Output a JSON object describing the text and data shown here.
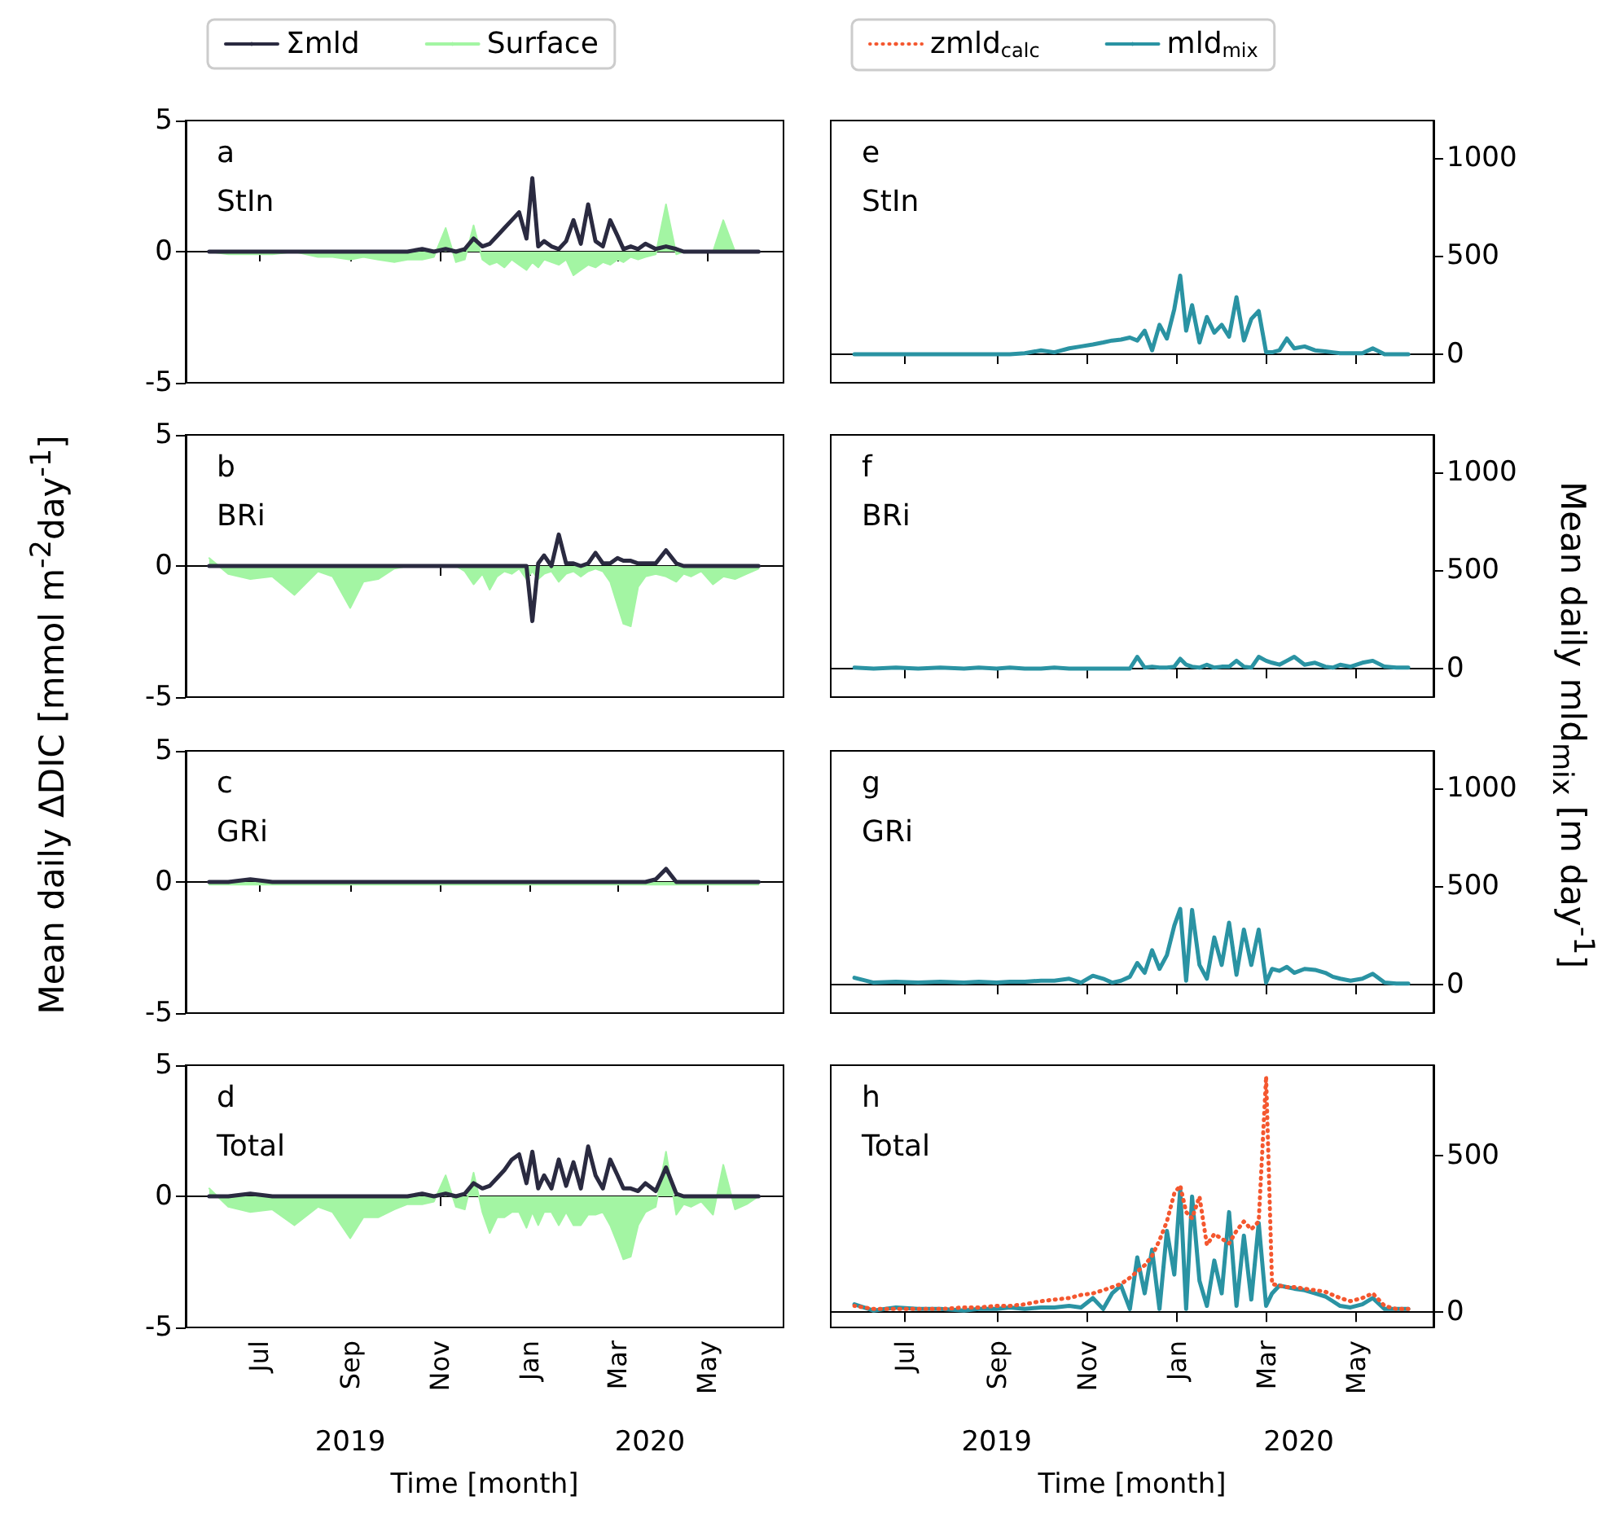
{
  "chart_data": [
    {
      "type": "line",
      "title": "a",
      "subtitle": "StIn",
      "legend": "top",
      "marker": "none",
      "tick_labels": "y",
      "xlim": [
        "2019-05-12",
        "2020-06-22"
      ],
      "xticks": [
        {
          "value": "2019-07-01",
          "label": null
        },
        {
          "value": "2019-09-01",
          "label": null
        },
        {
          "value": "2019-11-01",
          "label": null
        },
        {
          "value": "2020-01-01",
          "label": null
        },
        {
          "value": "2020-03-01",
          "label": null
        },
        {
          "value": "2020-05-01",
          "label": null
        }
      ],
      "ylim": [
        -5,
        5
      ],
      "yticks": [
        -5,
        0,
        5
      ],
      "x": [
        "2019-05-28",
        "2019-06-10",
        "2019-06-25",
        "2019-07-10",
        "2019-07-25",
        "2019-08-10",
        "2019-08-20",
        "2019-09-01",
        "2019-09-10",
        "2019-09-20",
        "2019-10-01",
        "2019-10-10",
        "2019-10-20",
        "2019-10-28",
        "2019-11-05",
        "2019-11-12",
        "2019-11-18",
        "2019-11-24",
        "2019-11-30",
        "2019-12-05",
        "2019-12-10",
        "2019-12-15",
        "2019-12-20",
        "2019-12-25",
        "2019-12-30",
        "2020-01-03",
        "2020-01-07",
        "2020-01-11",
        "2020-01-16",
        "2020-01-21",
        "2020-01-26",
        "2020-01-31",
        "2020-02-05",
        "2020-02-10",
        "2020-02-15",
        "2020-02-20",
        "2020-02-25",
        "2020-03-01",
        "2020-03-05",
        "2020-03-10",
        "2020-03-15",
        "2020-03-20",
        "2020-03-27",
        "2020-04-03",
        "2020-04-10",
        "2020-04-15",
        "2020-04-20",
        "2020-04-27",
        "2020-05-05",
        "2020-05-12",
        "2020-05-20",
        "2020-05-28",
        "2020-06-05"
      ],
      "series": [
        {
          "name": "Σmld",
          "color": "#2a2a40",
          "values": [
            0,
            0,
            0,
            0,
            0,
            0,
            0,
            0,
            0,
            0,
            0,
            0,
            0.1,
            0,
            0.1,
            0,
            0.1,
            0.5,
            0.2,
            0.3,
            0.6,
            0.9,
            1.2,
            1.5,
            0.5,
            2.8,
            0.2,
            0.4,
            0.2,
            0.1,
            0.4,
            1.2,
            0.3,
            1.8,
            0.4,
            0.2,
            1.2,
            0.6,
            0.1,
            0.2,
            0.1,
            0.3,
            0.1,
            0.2,
            0.1,
            0,
            0,
            0,
            0,
            0,
            0,
            0,
            0
          ]
        },
        {
          "name": "Surface",
          "type": "area",
          "color": "#a3f5a3",
          "values": [
            0,
            -0.1,
            -0.1,
            -0.1,
            0,
            -0.2,
            -0.2,
            -0.3,
            -0.2,
            -0.3,
            -0.4,
            -0.3,
            -0.3,
            -0.2,
            0.9,
            -0.4,
            -0.3,
            1.0,
            -0.3,
            -0.5,
            -0.4,
            -0.6,
            -0.3,
            -0.5,
            -0.7,
            -0.4,
            -0.6,
            -0.3,
            -0.4,
            -0.5,
            -0.3,
            -0.9,
            -0.7,
            -0.5,
            -0.6,
            -0.4,
            -0.5,
            -0.3,
            -0.4,
            -0.2,
            -0.3,
            -0.2,
            -0.1,
            1.8,
            -0.1,
            0,
            0,
            0,
            0,
            1.2,
            0,
            0,
            0
          ]
        }
      ]
    },
    {
      "type": "line",
      "title": "b",
      "subtitle": "BRi",
      "ylabel": "Mean daily ΔDIC [mmol m$^{-2}$day$^{-1}$]",
      "marker": "none",
      "tick_labels": "y",
      "xlim": [
        "2019-05-12",
        "2020-06-22"
      ],
      "xticks": [
        {
          "value": "2019-07-01",
          "label": null
        },
        {
          "value": "2019-09-01",
          "label": null
        },
        {
          "value": "2019-11-01",
          "label": null
        },
        {
          "value": "2020-01-01",
          "label": null
        },
        {
          "value": "2020-03-01",
          "label": null
        },
        {
          "value": "2020-05-01",
          "label": null
        }
      ],
      "ylim": [
        -5,
        5
      ],
      "yticks": [
        -5,
        0,
        5
      ],
      "x": [
        "2019-05-28",
        "2019-06-10",
        "2019-06-25",
        "2019-07-10",
        "2019-07-25",
        "2019-08-10",
        "2019-08-20",
        "2019-09-01",
        "2019-09-10",
        "2019-09-20",
        "2019-10-01",
        "2019-10-10",
        "2019-10-20",
        "2019-10-28",
        "2019-11-05",
        "2019-11-12",
        "2019-11-18",
        "2019-11-24",
        "2019-11-30",
        "2019-12-05",
        "2019-12-10",
        "2019-12-15",
        "2019-12-20",
        "2019-12-25",
        "2019-12-30",
        "2020-01-03",
        "2020-01-07",
        "2020-01-11",
        "2020-01-16",
        "2020-01-21",
        "2020-01-26",
        "2020-01-31",
        "2020-02-05",
        "2020-02-10",
        "2020-02-15",
        "2020-02-20",
        "2020-02-25",
        "2020-03-01",
        "2020-03-05",
        "2020-03-10",
        "2020-03-15",
        "2020-03-20",
        "2020-03-27",
        "2020-04-03",
        "2020-04-10",
        "2020-04-15",
        "2020-04-20",
        "2020-04-27",
        "2020-05-05",
        "2020-05-12",
        "2020-05-20",
        "2020-05-28",
        "2020-06-05"
      ],
      "series": [
        {
          "color": "#2a2a40",
          "values": [
            0,
            0,
            0,
            0,
            0,
            0,
            0,
            0,
            0,
            0,
            0,
            0,
            0,
            0,
            0,
            0,
            0,
            0,
            0,
            0,
            0,
            0,
            0,
            0,
            0,
            -2.1,
            0.1,
            0.4,
            0,
            1.2,
            0.1,
            0.1,
            0,
            0.1,
            0.5,
            0.1,
            0.1,
            0.3,
            0.2,
            0.2,
            0.1,
            0.1,
            0.1,
            0.6,
            0.1,
            0,
            0,
            0,
            0,
            0,
            0,
            0,
            0
          ]
        },
        {
          "type": "area",
          "color": "#a3f5a3",
          "values": [
            0.3,
            -0.3,
            -0.5,
            -0.4,
            -1.1,
            -0.2,
            -0.4,
            -1.6,
            -0.6,
            -0.5,
            -0.1,
            0,
            0,
            0,
            0,
            0,
            -0.2,
            -0.7,
            -0.3,
            -0.9,
            -0.4,
            -0.2,
            -0.3,
            -0.1,
            -0.5,
            -0.2,
            -0.5,
            -0.3,
            -0.2,
            -0.6,
            -0.3,
            -0.2,
            -0.4,
            -0.2,
            -0.1,
            -0.2,
            -0.6,
            -1.5,
            -2.2,
            -2.3,
            -0.8,
            -0.4,
            -0.3,
            -0.4,
            -0.6,
            -0.3,
            -0.4,
            -0.2,
            -0.7,
            -0.4,
            -0.5,
            -0.3,
            -0.1
          ]
        }
      ]
    },
    {
      "type": "line",
      "title": "c",
      "subtitle": "GRi",
      "marker": "none",
      "tick_labels": "y",
      "xlim": [
        "2019-05-12",
        "2020-06-22"
      ],
      "xticks": [
        {
          "value": "2019-07-01",
          "label": null
        },
        {
          "value": "2019-09-01",
          "label": null
        },
        {
          "value": "2019-11-01",
          "label": null
        },
        {
          "value": "2020-01-01",
          "label": null
        },
        {
          "value": "2020-03-01",
          "label": null
        },
        {
          "value": "2020-05-01",
          "label": null
        }
      ],
      "ylim": [
        -5,
        5
      ],
      "yticks": [
        -5,
        0,
        5
      ],
      "x": [
        "2019-05-28",
        "2019-06-10",
        "2019-06-25",
        "2019-07-10",
        "2019-07-25",
        "2019-08-10",
        "2019-08-20",
        "2019-09-01",
        "2019-09-10",
        "2019-09-20",
        "2019-10-01",
        "2019-10-10",
        "2019-10-20",
        "2019-10-28",
        "2019-11-05",
        "2019-11-12",
        "2019-11-18",
        "2019-11-24",
        "2019-11-30",
        "2019-12-05",
        "2019-12-10",
        "2019-12-15",
        "2019-12-20",
        "2019-12-25",
        "2019-12-30",
        "2020-01-03",
        "2020-01-07",
        "2020-01-11",
        "2020-01-16",
        "2020-01-21",
        "2020-01-26",
        "2020-01-31",
        "2020-02-05",
        "2020-02-10",
        "2020-02-15",
        "2020-02-20",
        "2020-02-25",
        "2020-03-01",
        "2020-03-05",
        "2020-03-10",
        "2020-03-15",
        "2020-03-20",
        "2020-03-27",
        "2020-04-03",
        "2020-04-10",
        "2020-04-15",
        "2020-04-20",
        "2020-04-27",
        "2020-05-05",
        "2020-05-12",
        "2020-05-20",
        "2020-05-28",
        "2020-06-05"
      ],
      "series": [
        {
          "color": "#2a2a40",
          "values": [
            0,
            0,
            0.1,
            0,
            0,
            0,
            0,
            0,
            0,
            0,
            0,
            0,
            0,
            0,
            0,
            0,
            0,
            0,
            0,
            0,
            0,
            0,
            0,
            0,
            0,
            0,
            0,
            0,
            0,
            0,
            0,
            0,
            0,
            0,
            0,
            0,
            0,
            0,
            0,
            0,
            0,
            0,
            0.1,
            0.5,
            0,
            0,
            0,
            0,
            0,
            0,
            0,
            0,
            0
          ]
        },
        {
          "type": "area",
          "color": "#a3f5a3",
          "values": [
            -0.1,
            -0.1,
            -0.1,
            -0.1,
            -0.1,
            -0.1,
            -0.1,
            -0.1,
            -0.1,
            -0.1,
            -0.1,
            -0.1,
            -0.1,
            -0.1,
            -0.1,
            -0.1,
            -0.1,
            -0.1,
            -0.1,
            -0.1,
            -0.1,
            -0.1,
            -0.1,
            -0.1,
            -0.1,
            -0.1,
            -0.1,
            -0.1,
            -0.1,
            -0.1,
            -0.1,
            -0.1,
            -0.1,
            -0.1,
            -0.1,
            -0.1,
            -0.1,
            -0.1,
            -0.1,
            -0.1,
            -0.1,
            -0.1,
            -0.1,
            -0.1,
            -0.1,
            -0.1,
            -0.1,
            -0.1,
            -0.1,
            -0.1,
            -0.1,
            -0.1,
            -0.1
          ]
        }
      ]
    },
    {
      "type": "line",
      "title": "d",
      "subtitle": "Total",
      "xlabel": "Time [month]",
      "marker": "none",
      "xlim": [
        "2019-05-12",
        "2020-06-22"
      ],
      "xticks": [
        {
          "value": "2019-07-01",
          "label": "Jul"
        },
        {
          "value": "2019-09-01",
          "label": "Sep"
        },
        {
          "value": "2019-11-01",
          "label": "Nov"
        },
        {
          "value": "2020-01-01",
          "label": "Jan"
        },
        {
          "value": "2020-03-01",
          "label": "Mar"
        },
        {
          "value": "2020-05-01",
          "label": "May"
        }
      ],
      "x2lim": [
        "2019-05-12",
        "2020-06-22"
      ],
      "x2ticks": [
        {
          "value": "2019-09-01",
          "label": "2019"
        },
        {
          "value": "2020-03-23",
          "label": "2020"
        }
      ],
      "ylim": [
        -5,
        5
      ],
      "yticks": [
        -5,
        0,
        5
      ],
      "x": [
        "2019-05-28",
        "2019-06-10",
        "2019-06-25",
        "2019-07-10",
        "2019-07-25",
        "2019-08-10",
        "2019-08-20",
        "2019-09-01",
        "2019-09-10",
        "2019-09-20",
        "2019-10-01",
        "2019-10-10",
        "2019-10-20",
        "2019-10-28",
        "2019-11-05",
        "2019-11-12",
        "2019-11-18",
        "2019-11-24",
        "2019-11-30",
        "2019-12-05",
        "2019-12-10",
        "2019-12-15",
        "2019-12-20",
        "2019-12-25",
        "2019-12-30",
        "2020-01-03",
        "2020-01-07",
        "2020-01-11",
        "2020-01-16",
        "2020-01-21",
        "2020-01-26",
        "2020-01-31",
        "2020-02-05",
        "2020-02-10",
        "2020-02-15",
        "2020-02-20",
        "2020-02-25",
        "2020-03-01",
        "2020-03-05",
        "2020-03-10",
        "2020-03-15",
        "2020-03-20",
        "2020-03-27",
        "2020-04-03",
        "2020-04-10",
        "2020-04-15",
        "2020-04-20",
        "2020-04-27",
        "2020-05-05",
        "2020-05-12",
        "2020-05-20",
        "2020-05-28",
        "2020-06-05"
      ],
      "series": [
        {
          "color": "#2a2a40",
          "values": [
            0,
            0,
            0.1,
            0,
            0,
            0,
            0,
            0,
            0,
            0,
            0,
            0,
            0.1,
            0,
            0.1,
            0,
            0.1,
            0.5,
            0.3,
            0.4,
            0.7,
            1.0,
            1.4,
            1.6,
            0.5,
            1.7,
            0.3,
            0.8,
            0.3,
            1.4,
            0.4,
            1.3,
            0.3,
            1.9,
            0.8,
            0.3,
            1.4,
            0.8,
            0.3,
            0.3,
            0.2,
            0.5,
            0.2,
            1.1,
            0.1,
            0,
            0,
            0,
            0,
            0,
            0,
            0,
            0
          ]
        },
        {
          "type": "area",
          "color": "#a3f5a3",
          "values": [
            0.3,
            -0.4,
            -0.6,
            -0.5,
            -1.1,
            -0.4,
            -0.6,
            -1.6,
            -0.8,
            -0.8,
            -0.5,
            -0.3,
            -0.3,
            -0.2,
            0.8,
            -0.4,
            -0.5,
            0.9,
            -0.6,
            -1.4,
            -0.8,
            -0.8,
            -0.6,
            -0.6,
            -1.2,
            -0.6,
            -1.1,
            -0.6,
            -0.6,
            -1.1,
            -0.6,
            -1.1,
            -1.1,
            -0.7,
            -0.7,
            -0.6,
            -1.1,
            -1.8,
            -2.4,
            -2.3,
            -1.1,
            -0.6,
            -0.4,
            1.7,
            -0.7,
            -0.3,
            -0.4,
            -0.2,
            -0.7,
            1.2,
            -0.5,
            -0.3,
            0
          ]
        }
      ]
    },
    {
      "type": "line",
      "title": "e",
      "subtitle": "StIn",
      "marker": "none",
      "tick_labels": "y",
      "xlim": [
        "2019-05-12",
        "2020-06-22"
      ],
      "xticks": [
        {
          "value": "2019-07-01",
          "label": null
        },
        {
          "value": "2019-09-01",
          "label": null
        },
        {
          "value": "2019-11-01",
          "label": null
        },
        {
          "value": "2020-01-01",
          "label": null
        },
        {
          "value": "2020-03-01",
          "label": null
        },
        {
          "value": "2020-05-01",
          "label": null
        }
      ],
      "ylim": [
        -145,
        1190
      ],
      "yticks": [
        0,
        500,
        1000
      ],
      "x": [
        "2019-05-28",
        "2019-06-10",
        "2019-06-25",
        "2019-07-10",
        "2019-07-25",
        "2019-08-10",
        "2019-08-20",
        "2019-09-01",
        "2019-09-10",
        "2019-09-20",
        "2019-10-01",
        "2019-10-10",
        "2019-10-20",
        "2019-10-28",
        "2019-11-05",
        "2019-11-12",
        "2019-11-18",
        "2019-11-24",
        "2019-11-30",
        "2019-12-05",
        "2019-12-10",
        "2019-12-15",
        "2019-12-20",
        "2019-12-25",
        "2019-12-30",
        "2020-01-03",
        "2020-01-07",
        "2020-01-11",
        "2020-01-16",
        "2020-01-21",
        "2020-01-26",
        "2020-01-31",
        "2020-02-05",
        "2020-02-10",
        "2020-02-15",
        "2020-02-20",
        "2020-02-25",
        "2020-03-01",
        "2020-03-05",
        "2020-03-10",
        "2020-03-15",
        "2020-03-20",
        "2020-03-27",
        "2020-04-03",
        "2020-04-10",
        "2020-04-15",
        "2020-04-20",
        "2020-04-27",
        "2020-05-05",
        "2020-05-12",
        "2020-05-20",
        "2020-05-28",
        "2020-06-05"
      ],
      "series": [
        {
          "color": "#2a93a3",
          "values": [
            0,
            0,
            0,
            0,
            0,
            0,
            0,
            0,
            0,
            5,
            20,
            10,
            30,
            40,
            50,
            60,
            70,
            75,
            85,
            70,
            120,
            20,
            150,
            80,
            230,
            400,
            120,
            250,
            60,
            190,
            110,
            150,
            90,
            290,
            70,
            180,
            220,
            10,
            10,
            20,
            80,
            30,
            40,
            20,
            15,
            10,
            5,
            5,
            5,
            30,
            0,
            0,
            0
          ]
        }
      ]
    },
    {
      "type": "line",
      "title": "f",
      "subtitle": "BRi",
      "ylabel": "Mean daily mld$_{mix}$ [m day$^{-1}$]",
      "marker": "none",
      "tick_labels": "y",
      "xlim": [
        "2019-05-12",
        "2020-06-22"
      ],
      "xticks": [
        {
          "value": "2019-07-01",
          "label": null
        },
        {
          "value": "2019-09-01",
          "label": null
        },
        {
          "value": "2019-11-01",
          "label": null
        },
        {
          "value": "2020-01-01",
          "label": null
        },
        {
          "value": "2020-03-01",
          "label": null
        },
        {
          "value": "2020-05-01",
          "label": null
        }
      ],
      "ylim": [
        -145,
        1190
      ],
      "yticks": [
        0,
        500,
        1000
      ],
      "x": [
        "2019-05-28",
        "2019-06-10",
        "2019-06-25",
        "2019-07-10",
        "2019-07-25",
        "2019-08-10",
        "2019-08-20",
        "2019-09-01",
        "2019-09-10",
        "2019-09-20",
        "2019-10-01",
        "2019-10-10",
        "2019-10-20",
        "2019-10-28",
        "2019-11-05",
        "2019-11-12",
        "2019-11-18",
        "2019-11-24",
        "2019-11-30",
        "2019-12-05",
        "2019-12-10",
        "2019-12-15",
        "2019-12-20",
        "2019-12-25",
        "2019-12-30",
        "2020-01-03",
        "2020-01-07",
        "2020-01-11",
        "2020-01-16",
        "2020-01-21",
        "2020-01-26",
        "2020-01-31",
        "2020-02-05",
        "2020-02-10",
        "2020-02-15",
        "2020-02-20",
        "2020-02-25",
        "2020-03-01",
        "2020-03-05",
        "2020-03-10",
        "2020-03-15",
        "2020-03-20",
        "2020-03-27",
        "2020-04-03",
        "2020-04-10",
        "2020-04-15",
        "2020-04-20",
        "2020-04-27",
        "2020-05-05",
        "2020-05-12",
        "2020-05-20",
        "2020-05-28",
        "2020-06-05"
      ],
      "series": [
        {
          "color": "#2a93a3",
          "values": [
            5,
            0,
            5,
            0,
            5,
            0,
            5,
            0,
            5,
            0,
            0,
            5,
            0,
            0,
            0,
            0,
            0,
            0,
            0,
            60,
            5,
            10,
            5,
            5,
            10,
            50,
            20,
            10,
            5,
            20,
            5,
            10,
            10,
            40,
            10,
            5,
            60,
            40,
            30,
            20,
            40,
            60,
            20,
            30,
            10,
            5,
            20,
            10,
            30,
            40,
            10,
            5,
            5
          ]
        }
      ]
    },
    {
      "type": "line",
      "title": "g",
      "subtitle": "GRi",
      "marker": "none",
      "tick_labels": "y",
      "xlim": [
        "2019-05-12",
        "2020-06-22"
      ],
      "xticks": [
        {
          "value": "2019-07-01",
          "label": null
        },
        {
          "value": "2019-09-01",
          "label": null
        },
        {
          "value": "2019-11-01",
          "label": null
        },
        {
          "value": "2020-01-01",
          "label": null
        },
        {
          "value": "2020-03-01",
          "label": null
        },
        {
          "value": "2020-05-01",
          "label": null
        }
      ],
      "ylim": [
        -145,
        1190
      ],
      "yticks": [
        0,
        500,
        1000
      ],
      "x": [
        "2019-05-28",
        "2019-06-10",
        "2019-06-25",
        "2019-07-10",
        "2019-07-25",
        "2019-08-10",
        "2019-08-20",
        "2019-09-01",
        "2019-09-10",
        "2019-09-20",
        "2019-10-01",
        "2019-10-10",
        "2019-10-20",
        "2019-10-28",
        "2019-11-05",
        "2019-11-12",
        "2019-11-18",
        "2019-11-24",
        "2019-11-30",
        "2019-12-05",
        "2019-12-10",
        "2019-12-15",
        "2019-12-20",
        "2019-12-25",
        "2019-12-30",
        "2020-01-03",
        "2020-01-07",
        "2020-01-11",
        "2020-01-16",
        "2020-01-21",
        "2020-01-26",
        "2020-01-31",
        "2020-02-05",
        "2020-02-10",
        "2020-02-15",
        "2020-02-20",
        "2020-02-25",
        "2020-03-01",
        "2020-03-05",
        "2020-03-10",
        "2020-03-15",
        "2020-03-20",
        "2020-03-27",
        "2020-04-03",
        "2020-04-10",
        "2020-04-15",
        "2020-04-20",
        "2020-04-27",
        "2020-05-05",
        "2020-05-12",
        "2020-05-20",
        "2020-05-28",
        "2020-06-05"
      ],
      "series": [
        {
          "color": "#2a93a3",
          "values": [
            35,
            10,
            15,
            10,
            15,
            10,
            15,
            10,
            15,
            15,
            20,
            20,
            30,
            10,
            45,
            30,
            10,
            20,
            40,
            110,
            60,
            175,
            80,
            150,
            300,
            385,
            20,
            380,
            100,
            30,
            240,
            100,
            315,
            50,
            280,
            100,
            280,
            10,
            80,
            70,
            90,
            60,
            80,
            75,
            60,
            40,
            30,
            20,
            30,
            55,
            10,
            5,
            5
          ]
        }
      ]
    },
    {
      "type": "line",
      "title": "h",
      "subtitle": "Total",
      "xlabel": "Time [month]",
      "legend": "top",
      "marker": "none",
      "xlim": [
        "2019-05-12",
        "2020-06-22"
      ],
      "xticks": [
        {
          "value": "2019-07-01",
          "label": "Jul"
        },
        {
          "value": "2019-09-01",
          "label": "Sep"
        },
        {
          "value": "2019-11-01",
          "label": "Nov"
        },
        {
          "value": "2020-01-01",
          "label": "Jan"
        },
        {
          "value": "2020-03-01",
          "label": "Mar"
        },
        {
          "value": "2020-05-01",
          "label": "May"
        }
      ],
      "x2lim": [
        "2019-05-12",
        "2020-06-22"
      ],
      "x2ticks": [
        {
          "value": "2019-09-01",
          "label": "2019"
        },
        {
          "value": "2020-03-23",
          "label": "2020"
        }
      ],
      "ylim": [
        -49,
        790
      ],
      "yticks": [
        0,
        500
      ],
      "x": [
        "2019-05-28",
        "2019-06-10",
        "2019-06-25",
        "2019-07-10",
        "2019-07-25",
        "2019-08-10",
        "2019-08-20",
        "2019-09-01",
        "2019-09-10",
        "2019-09-20",
        "2019-10-01",
        "2019-10-10",
        "2019-10-20",
        "2019-10-28",
        "2019-11-05",
        "2019-11-12",
        "2019-11-18",
        "2019-11-24",
        "2019-11-30",
        "2019-12-05",
        "2019-12-10",
        "2019-12-15",
        "2019-12-20",
        "2019-12-25",
        "2019-12-30",
        "2020-01-03",
        "2020-01-07",
        "2020-01-11",
        "2020-01-16",
        "2020-01-21",
        "2020-01-26",
        "2020-01-31",
        "2020-02-05",
        "2020-02-10",
        "2020-02-15",
        "2020-02-20",
        "2020-02-25",
        "2020-03-01",
        "2020-03-05",
        "2020-03-10",
        "2020-03-15",
        "2020-03-20",
        "2020-03-27",
        "2020-04-03",
        "2020-04-10",
        "2020-04-15",
        "2020-04-20",
        "2020-04-27",
        "2020-05-05",
        "2020-05-12",
        "2020-05-20",
        "2020-05-28",
        "2020-06-05"
      ],
      "series": [
        {
          "name": "zmld$_{calc}$",
          "line_style": "dotted",
          "color": "#f4572f",
          "values": [
            20,
            10,
            10,
            10,
            10,
            15,
            15,
            20,
            20,
            25,
            35,
            40,
            45,
            55,
            60,
            70,
            80,
            90,
            110,
            130,
            150,
            180,
            230,
            290,
            380,
            405,
            320,
            300,
            370,
            215,
            250,
            235,
            220,
            260,
            290,
            265,
            290,
            754,
            90,
            85,
            80,
            80,
            75,
            70,
            65,
            55,
            45,
            35,
            45,
            60,
            20,
            10,
            10
          ]
        },
        {
          "name": "mld$_{mix}$",
          "color": "#2a93a3",
          "values": [
            25,
            5,
            15,
            10,
            10,
            5,
            10,
            10,
            15,
            10,
            15,
            15,
            20,
            15,
            45,
            10,
            60,
            85,
            10,
            175,
            60,
            200,
            10,
            260,
            120,
            395,
            10,
            370,
            100,
            20,
            165,
            60,
            320,
            20,
            245,
            40,
            285,
            20,
            60,
            85,
            80,
            75,
            70,
            60,
            50,
            35,
            20,
            15,
            25,
            45,
            10,
            10,
            10
          ]
        }
      ]
    }
  ]
}
